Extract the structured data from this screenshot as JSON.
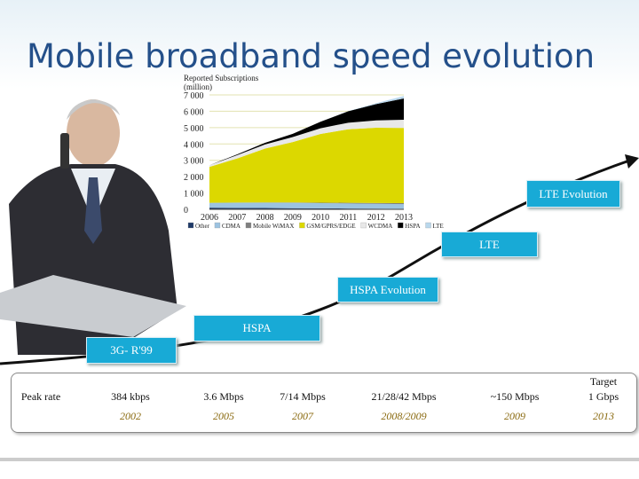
{
  "title": "Mobile broadband speed evolution",
  "chart_data": {
    "type": "area",
    "stacked": true,
    "y_label": "Reported Subscriptions (million)",
    "categories": [
      "2006",
      "2007",
      "2008",
      "2009",
      "2010",
      "2011",
      "2012",
      "2013"
    ],
    "ylim": [
      0,
      7000
    ],
    "yticks": [
      0,
      {
        "value": 1000,
        "label": "1 000"
      },
      {
        "value": 2000,
        "label": "2 000"
      },
      {
        "value": 3000,
        "label": "3 000"
      },
      {
        "value": 4000,
        "label": "4 000"
      },
      {
        "value": 5000,
        "label": "5 000"
      },
      {
        "value": 6000,
        "label": "6 000"
      },
      {
        "value": 7000,
        "label": "7 000"
      }
    ],
    "grid": true,
    "series": [
      {
        "name": "Other",
        "color": "#1f3a68",
        "values": [
          100,
          90,
          80,
          70,
          60,
          50,
          40,
          30
        ]
      },
      {
        "name": "CDMA",
        "color": "#9cc3e0",
        "values": [
          300,
          320,
          330,
          330,
          320,
          310,
          300,
          290
        ]
      },
      {
        "name": "Mobile WiMAX",
        "color": "#7f7f7f",
        "values": [
          0,
          5,
          10,
          20,
          30,
          40,
          50,
          60
        ]
      },
      {
        "name": "GSM/GPRS/EDGE",
        "color": "#dcd800",
        "values": [
          2200,
          2700,
          3300,
          3700,
          4200,
          4500,
          4600,
          4600
        ]
      },
      {
        "name": "WCDMA",
        "color": "#e8e8e8",
        "values": [
          100,
          200,
          250,
          300,
          350,
          400,
          450,
          500
        ]
      },
      {
        "name": "HSPA",
        "color": "#000000",
        "values": [
          0,
          50,
          100,
          200,
          400,
          700,
          1000,
          1300
        ]
      },
      {
        "name": "LTE",
        "color": "#b9d7ec",
        "values": [
          0,
          0,
          0,
          0,
          0,
          10,
          50,
          150
        ]
      }
    ]
  },
  "stages": [
    "3G- R'99",
    "HSPA",
    "HSPA Evolution",
    "LTE",
    "LTE Evolution"
  ],
  "table": {
    "row_label": "Peak rate",
    "target_label": "Target",
    "rates": [
      "384 kbps",
      "3.6 Mbps",
      "7/14 Mbps",
      "21/28/42 Mbps",
      "~150 Mbps",
      "1 Gbps"
    ],
    "years": [
      "2002",
      "2005",
      "2007",
      "2008/2009",
      "2009",
      "2013"
    ]
  }
}
